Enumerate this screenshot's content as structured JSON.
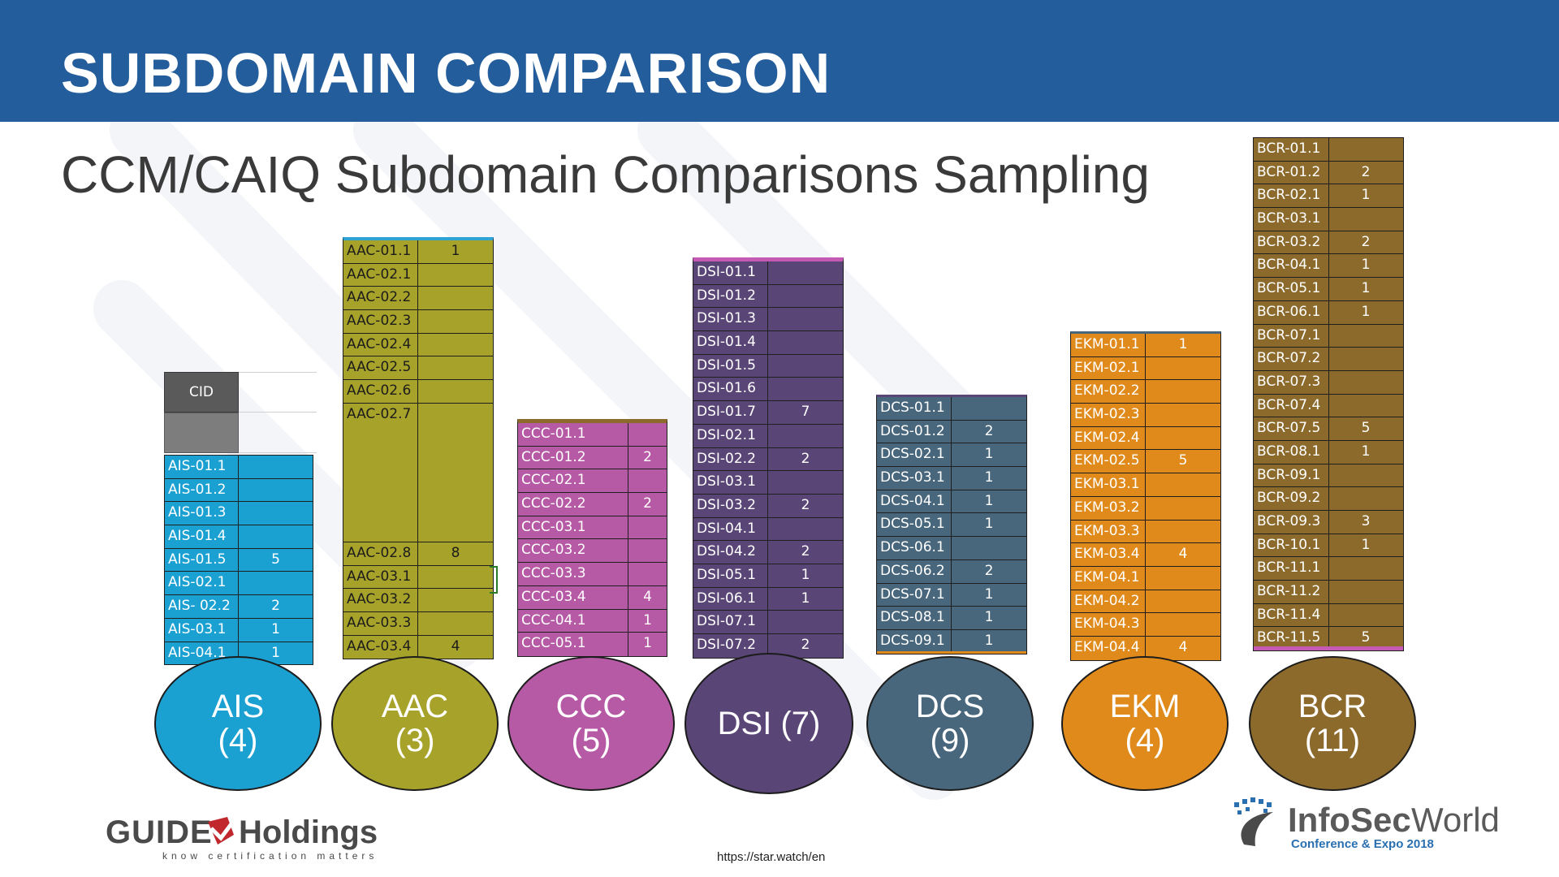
{
  "header": {
    "title": "SUBDOMAIN COMPARISON"
  },
  "subtitle": "CCM/CAIQ Subdomain Comparisons Sampling",
  "colors": {
    "header": "#235d9b",
    "ais": "#1ba0d2",
    "aac": "#a7a22a",
    "ccc": "#b75aa5",
    "dsi": "#5a4577",
    "dcs": "#49677c",
    "ekm": "#df8a1a",
    "bcr": "#8c6a2c"
  },
  "tables": {
    "ais": {
      "cid_label": "CID",
      "rows": [
        {
          "id": "AIS-01.1",
          "val": ""
        },
        {
          "id": "AIS-01.2",
          "val": ""
        },
        {
          "id": "AIS-01.3",
          "val": ""
        },
        {
          "id": "AIS-01.4",
          "val": ""
        },
        {
          "id": "AIS-01.5",
          "val": "5"
        },
        {
          "id": "AIS-02.1",
          "val": ""
        },
        {
          "id": "AIS- 02.2",
          "val": "2"
        },
        {
          "id": "AIS-03.1",
          "val": "1"
        },
        {
          "id": "AIS-04.1",
          "val": "1"
        }
      ]
    },
    "aac": {
      "rows": [
        {
          "id": "AAC-01.1",
          "val": "1"
        },
        {
          "id": "AAC-02.1",
          "val": ""
        },
        {
          "id": "AAC-02.2",
          "val": ""
        },
        {
          "id": "AAC-02.3",
          "val": ""
        },
        {
          "id": "AAC-02.4",
          "val": ""
        },
        {
          "id": "AAC-02.5",
          "val": ""
        },
        {
          "id": "AAC-02.6",
          "val": ""
        },
        {
          "id": "AAC-02.7",
          "val": ""
        },
        {
          "id": "AAC-02.8",
          "val": "8"
        },
        {
          "id": "AAC-03.1",
          "val": ""
        },
        {
          "id": "AAC-03.2",
          "val": ""
        },
        {
          "id": "AAC-03.3",
          "val": ""
        },
        {
          "id": "AAC-03.4",
          "val": "4"
        }
      ]
    },
    "ccc": {
      "rows": [
        {
          "id": "CCC-01.1",
          "val": ""
        },
        {
          "id": "CCC-01.2",
          "val": "2"
        },
        {
          "id": "CCC-02.1",
          "val": ""
        },
        {
          "id": "CCC-02.2",
          "val": "2"
        },
        {
          "id": "CCC-03.1",
          "val": ""
        },
        {
          "id": "CCC-03.2",
          "val": ""
        },
        {
          "id": "CCC-03.3",
          "val": ""
        },
        {
          "id": "CCC-03.4",
          "val": "4"
        },
        {
          "id": "CCC-04.1",
          "val": "1"
        },
        {
          "id": "CCC-05.1",
          "val": "1"
        }
      ]
    },
    "dsi": {
      "rows": [
        {
          "id": "DSI-01.1",
          "val": ""
        },
        {
          "id": "DSI-01.2",
          "val": ""
        },
        {
          "id": "DSI-01.3",
          "val": ""
        },
        {
          "id": "DSI-01.4",
          "val": ""
        },
        {
          "id": "DSI-01.5",
          "val": ""
        },
        {
          "id": "DSI-01.6",
          "val": ""
        },
        {
          "id": "DSI-01.7",
          "val": "7"
        },
        {
          "id": "DSI-02.1",
          "val": ""
        },
        {
          "id": "DSI-02.2",
          "val": "2"
        },
        {
          "id": "DSI-03.1",
          "val": ""
        },
        {
          "id": "DSI-03.2",
          "val": "2"
        },
        {
          "id": "DSI-04.1",
          "val": ""
        },
        {
          "id": "DSI-04.2",
          "val": "2"
        },
        {
          "id": "DSI-05.1",
          "val": "1"
        },
        {
          "id": "DSI-06.1",
          "val": "1"
        },
        {
          "id": "DSI-07.1",
          "val": ""
        },
        {
          "id": "DSI-07.2",
          "val": "2"
        }
      ]
    },
    "dcs": {
      "rows": [
        {
          "id": "DCS-01.1",
          "val": ""
        },
        {
          "id": "DCS-01.2",
          "val": "2"
        },
        {
          "id": "DCS-02.1",
          "val": "1"
        },
        {
          "id": "DCS-03.1",
          "val": "1"
        },
        {
          "id": "DCS-04.1",
          "val": "1"
        },
        {
          "id": "DCS-05.1",
          "val": "1"
        },
        {
          "id": "DCS-06.1",
          "val": ""
        },
        {
          "id": "DCS-06.2",
          "val": "2"
        },
        {
          "id": "DCS-07.1",
          "val": "1"
        },
        {
          "id": "DCS-08.1",
          "val": "1"
        },
        {
          "id": "DCS-09.1",
          "val": "1"
        }
      ]
    },
    "ekm": {
      "rows": [
        {
          "id": "EKM-01.1",
          "val": "1"
        },
        {
          "id": "EKM-02.1",
          "val": ""
        },
        {
          "id": "EKM-02.2",
          "val": ""
        },
        {
          "id": "EKM-02.3",
          "val": ""
        },
        {
          "id": "EKM-02.4",
          "val": ""
        },
        {
          "id": "EKM-02.5",
          "val": "5"
        },
        {
          "id": "EKM-03.1",
          "val": ""
        },
        {
          "id": "EKM-03.2",
          "val": ""
        },
        {
          "id": "EKM-03.3",
          "val": ""
        },
        {
          "id": "EKM-03.4",
          "val": "4"
        },
        {
          "id": "EKM-04.1",
          "val": ""
        },
        {
          "id": "EKM-04.2",
          "val": ""
        },
        {
          "id": "EKM-04.3",
          "val": ""
        },
        {
          "id": "EKM-04.4",
          "val": "4"
        }
      ]
    },
    "bcr": {
      "rows": [
        {
          "id": "BCR-01.1",
          "val": ""
        },
        {
          "id": "BCR-01.2",
          "val": "2"
        },
        {
          "id": "BCR-02.1",
          "val": "1"
        },
        {
          "id": "BCR-03.1",
          "val": ""
        },
        {
          "id": "BCR-03.2",
          "val": "2"
        },
        {
          "id": "BCR-04.1",
          "val": "1"
        },
        {
          "id": "BCR-05.1",
          "val": "1"
        },
        {
          "id": "BCR-06.1",
          "val": "1"
        },
        {
          "id": "BCR-07.1",
          "val": ""
        },
        {
          "id": "BCR-07.2",
          "val": ""
        },
        {
          "id": "BCR-07.3",
          "val": ""
        },
        {
          "id": "BCR-07.4",
          "val": ""
        },
        {
          "id": "BCR-07.5",
          "val": "5"
        },
        {
          "id": "BCR-08.1",
          "val": "1"
        },
        {
          "id": "BCR-09.1",
          "val": ""
        },
        {
          "id": "BCR-09.2",
          "val": ""
        },
        {
          "id": "BCR-09.3",
          "val": "3"
        },
        {
          "id": "BCR-10.1",
          "val": "1"
        },
        {
          "id": "BCR-11.1",
          "val": ""
        },
        {
          "id": "BCR-11.2",
          "val": ""
        },
        {
          "id": "BCR-11.4",
          "val": ""
        },
        {
          "id": "BCR-11.5",
          "val": "5"
        }
      ]
    }
  },
  "bubbles": {
    "ais": {
      "name": "AIS",
      "count": "(4)"
    },
    "aac": {
      "name": "AAC",
      "count": "(3)"
    },
    "ccc": {
      "name": "CCC",
      "count": "(5)"
    },
    "dsi": {
      "label": "DSI (7)"
    },
    "dcs": {
      "name": "DCS",
      "count": "(9)"
    },
    "ekm": {
      "name": "EKM",
      "count": "(4)"
    },
    "bcr": {
      "name": "BCR",
      "count": "(11)"
    }
  },
  "footer": {
    "url": "https://star.watch/en",
    "guide_logo": {
      "name": "GUIDE HOLDINGS",
      "tagline": "know certification matters"
    },
    "isw_logo": {
      "name": "InfoSecWorld",
      "tagline": "Conference & Expo 2018"
    }
  }
}
